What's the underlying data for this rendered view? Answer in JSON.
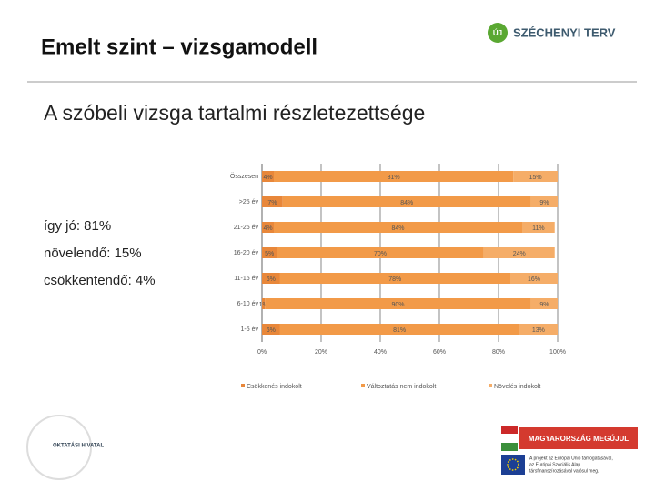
{
  "header": {
    "title": "Emelt szint – vizsgamodell",
    "logo": "SZÉCHENYI TERV",
    "logo_mark": "ÚJ"
  },
  "subtitle": "A szóbeli vizsga tartalmi részletezettsége",
  "summary": [
    "így jó: 81%",
    "növelendő: 15%",
    "csökkentendő: 4%"
  ],
  "footer": {
    "left": "OKTATÁSI HIVATAL",
    "banner": "MAGYARORSZÁG MEGÚJUL",
    "eu_text": [
      "A projekt az Európai Unió támogatásával,",
      "az Európai Szociális Alap",
      "társfinanszírozásával valósul meg."
    ]
  },
  "chart_data": {
    "type": "stacked_barh",
    "categories": [
      "Összesen",
      ">25 év",
      "21-25 év",
      "16-20 év",
      "11-15 év",
      "6-10 év",
      "1-5 év"
    ],
    "series": [
      {
        "name": "Csökkenés indokolt",
        "color": "#e8873a",
        "values": [
          4,
          7,
          4,
          5,
          6,
          1,
          6
        ],
        "value_labels": [
          "4%",
          "7%",
          "4%",
          "5%",
          "6%",
          "1%",
          "6%"
        ]
      },
      {
        "name": "Változtatás nem indokolt",
        "color": "#f29a48",
        "values": [
          81,
          84,
          84,
          70,
          78,
          90,
          81
        ],
        "value_labels": [
          "81%",
          "84%",
          "84%",
          "70%",
          "78%",
          "90%",
          "81%"
        ]
      },
      {
        "name": "Növelés indokolt",
        "color": "#f5ad68",
        "values": [
          15,
          9,
          11,
          24,
          16,
          9,
          13
        ],
        "value_labels": [
          "15%",
          "9%",
          "11%",
          "24%",
          "16%",
          "9%",
          "13%"
        ]
      }
    ],
    "xlim": [
      0,
      100
    ],
    "xticks": [
      {
        "value": 0,
        "label": "0%"
      },
      {
        "value": 20,
        "label": "20%"
      },
      {
        "value": 40,
        "label": "40%"
      },
      {
        "value": 60,
        "label": "60%"
      },
      {
        "value": 80,
        "label": "80%"
      },
      {
        "value": 100,
        "label": "100%"
      }
    ],
    "grid": true
  }
}
